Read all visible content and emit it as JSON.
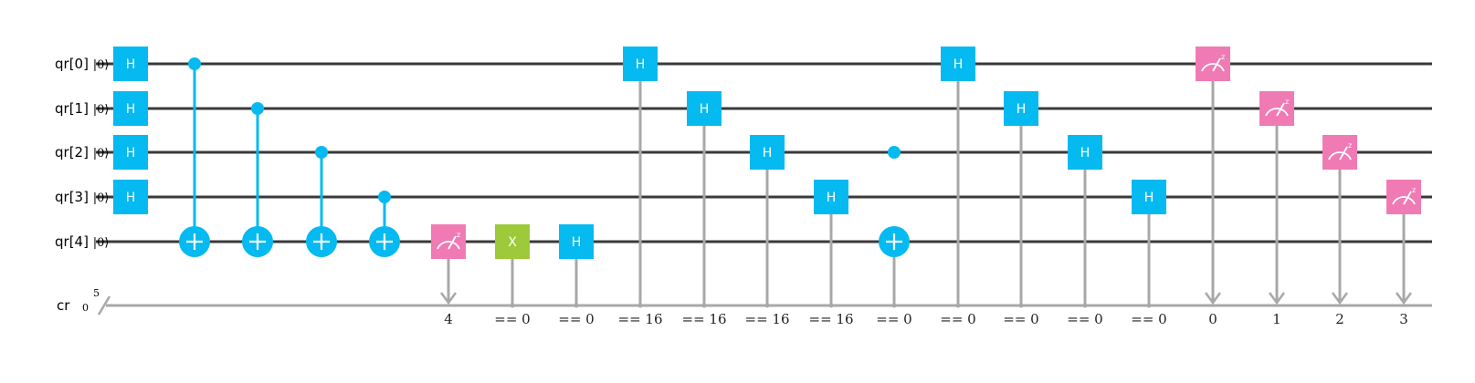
{
  "colors": {
    "h_gate": "#05BAF0",
    "x_gate": "#9DC93B",
    "measure": "#F07BB4",
    "control": "#05BAF0",
    "classical_line": "#A8A8A8",
    "quantum_wire": "#3A3A3A"
  },
  "registers": {
    "quantum": [
      {
        "label": "qr[0]",
        "init": "|0⟩"
      },
      {
        "label": "qr[1]",
        "init": "|0⟩"
      },
      {
        "label": "qr[2]",
        "init": "|0⟩"
      },
      {
        "label": "qr[3]",
        "init": "|0⟩"
      },
      {
        "label": "qr[4]",
        "init": "|0⟩"
      }
    ],
    "classical": {
      "label": "cr",
      "init": "0",
      "bits": "5"
    }
  },
  "gates": [
    {
      "type": "h",
      "label": "H",
      "col": 0,
      "qubit": 0
    },
    {
      "type": "h",
      "label": "H",
      "col": 0,
      "qubit": 1
    },
    {
      "type": "h",
      "label": "H",
      "col": 0,
      "qubit": 2
    },
    {
      "type": "h",
      "label": "H",
      "col": 0,
      "qubit": 3
    },
    {
      "type": "cx",
      "col": 1,
      "control": 0,
      "target": 4
    },
    {
      "type": "cx",
      "col": 2,
      "control": 1,
      "target": 4
    },
    {
      "type": "cx",
      "col": 3,
      "control": 2,
      "target": 4
    },
    {
      "type": "cx",
      "col": 4,
      "control": 3,
      "target": 4
    },
    {
      "type": "measure",
      "col": 5,
      "qubit": 4,
      "cond": "4"
    },
    {
      "type": "x",
      "label": "X",
      "col": 6,
      "qubit": 4,
      "cond": "== 0"
    },
    {
      "type": "h",
      "label": "H",
      "col": 7,
      "qubit": 4,
      "cond": "== 0"
    },
    {
      "type": "h",
      "label": "H",
      "col": 8,
      "qubit": 0,
      "cond": "== 16"
    },
    {
      "type": "h",
      "label": "H",
      "col": 9,
      "qubit": 1,
      "cond": "== 16"
    },
    {
      "type": "h",
      "label": "H",
      "col": 10,
      "qubit": 2,
      "cond": "== 16"
    },
    {
      "type": "h",
      "label": "H",
      "col": 11,
      "qubit": 3,
      "cond": "== 16"
    },
    {
      "type": "cx",
      "col": 12,
      "control": 2,
      "target": 4,
      "cond": "== 0",
      "linked": false
    },
    {
      "type": "h",
      "label": "H",
      "col": 13,
      "qubit": 0,
      "cond": "== 0"
    },
    {
      "type": "h",
      "label": "H",
      "col": 14,
      "qubit": 1,
      "cond": "== 0"
    },
    {
      "type": "h",
      "label": "H",
      "col": 15,
      "qubit": 2,
      "cond": "== 0"
    },
    {
      "type": "h",
      "label": "H",
      "col": 16,
      "qubit": 3,
      "cond": "== 0"
    },
    {
      "type": "measure",
      "col": 17,
      "qubit": 0,
      "cond": "0"
    },
    {
      "type": "measure",
      "col": 18,
      "qubit": 1,
      "cond": "1"
    },
    {
      "type": "measure",
      "col": 19,
      "qubit": 2,
      "cond": "2"
    },
    {
      "type": "measure",
      "col": 20,
      "qubit": 3,
      "cond": "3"
    }
  ]
}
